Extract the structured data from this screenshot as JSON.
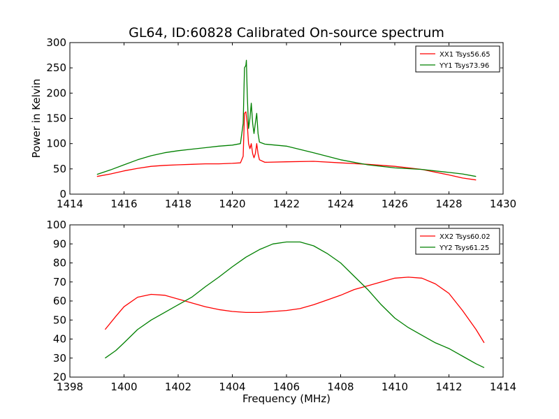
{
  "title": "GL64, ID:60828 Calibrated On-source spectrum",
  "chart_data": [
    {
      "type": "line",
      "xlabel": "",
      "ylabel": "Power in Kelvin",
      "xlim": [
        1414,
        1430
      ],
      "ylim": [
        0,
        300
      ],
      "xticks": [
        1414,
        1416,
        1418,
        1420,
        1422,
        1424,
        1426,
        1428,
        1430
      ],
      "yticks": [
        0,
        50,
        100,
        150,
        200,
        250,
        300
      ],
      "legend_position": "top-right",
      "series": [
        {
          "name": "XX1 Tsys56.65",
          "color": "#ff0000",
          "points": [
            [
              1415.0,
              35
            ],
            [
              1415.5,
              40
            ],
            [
              1416.0,
              46
            ],
            [
              1416.5,
              51
            ],
            [
              1417.0,
              55
            ],
            [
              1417.5,
              57
            ],
            [
              1418.0,
              58
            ],
            [
              1418.5,
              59
            ],
            [
              1419.0,
              60
            ],
            [
              1419.5,
              60
            ],
            [
              1420.0,
              61
            ],
            [
              1420.3,
              62
            ],
            [
              1420.4,
              75
            ],
            [
              1420.45,
              160
            ],
            [
              1420.5,
              163
            ],
            [
              1420.55,
              140
            ],
            [
              1420.6,
              100
            ],
            [
              1420.65,
              90
            ],
            [
              1420.7,
              100
            ],
            [
              1420.75,
              80
            ],
            [
              1420.8,
              72
            ],
            [
              1420.85,
              80
            ],
            [
              1420.9,
              100
            ],
            [
              1420.95,
              80
            ],
            [
              1421.0,
              68
            ],
            [
              1421.2,
              63
            ],
            [
              1422.0,
              64
            ],
            [
              1423.0,
              65
            ],
            [
              1424.0,
              62
            ],
            [
              1425.0,
              59
            ],
            [
              1426.0,
              55
            ],
            [
              1427.0,
              49
            ],
            [
              1428.0,
              38
            ],
            [
              1428.5,
              32
            ],
            [
              1429.0,
              28
            ]
          ]
        },
        {
          "name": "YY1 Tsys73.96",
          "color": "#008000",
          "points": [
            [
              1415.0,
              39
            ],
            [
              1415.5,
              48
            ],
            [
              1416.0,
              58
            ],
            [
              1416.5,
              68
            ],
            [
              1417.0,
              76
            ],
            [
              1417.5,
              82
            ],
            [
              1418.0,
              86
            ],
            [
              1418.5,
              89
            ],
            [
              1419.0,
              92
            ],
            [
              1419.5,
              95
            ],
            [
              1420.0,
              97
            ],
            [
              1420.3,
              100
            ],
            [
              1420.4,
              140
            ],
            [
              1420.45,
              250
            ],
            [
              1420.5,
              255
            ],
            [
              1420.52,
              265
            ],
            [
              1420.55,
              200
            ],
            [
              1420.6,
              130
            ],
            [
              1420.65,
              150
            ],
            [
              1420.7,
              180
            ],
            [
              1420.75,
              140
            ],
            [
              1420.8,
              120
            ],
            [
              1420.85,
              140
            ],
            [
              1420.9,
              160
            ],
            [
              1420.95,
              120
            ],
            [
              1421.0,
              103
            ],
            [
              1421.2,
              99
            ],
            [
              1422.0,
              95
            ],
            [
              1423.0,
              82
            ],
            [
              1424.0,
              68
            ],
            [
              1425.0,
              58
            ],
            [
              1426.0,
              52
            ],
            [
              1427.0,
              49
            ],
            [
              1428.0,
              43
            ],
            [
              1428.5,
              40
            ],
            [
              1429.0,
              35
            ]
          ]
        }
      ]
    },
    {
      "type": "line",
      "xlabel": "Frequency (MHz)",
      "ylabel": "",
      "xlim": [
        1398,
        1414
      ],
      "ylim": [
        20,
        100
      ],
      "xticks": [
        1398,
        1400,
        1402,
        1404,
        1406,
        1408,
        1410,
        1412,
        1414
      ],
      "yticks": [
        20,
        30,
        40,
        50,
        60,
        70,
        80,
        90,
        100
      ],
      "legend_position": "top-right",
      "series": [
        {
          "name": "XX2 Tsys60.02",
          "color": "#ff0000",
          "points": [
            [
              1399.3,
              45
            ],
            [
              1399.7,
              52
            ],
            [
              1400.0,
              57
            ],
            [
              1400.5,
              62
            ],
            [
              1401.0,
              63.5
            ],
            [
              1401.5,
              63
            ],
            [
              1402.0,
              61
            ],
            [
              1402.5,
              59
            ],
            [
              1403.0,
              57
            ],
            [
              1403.5,
              55.5
            ],
            [
              1404.0,
              54.5
            ],
            [
              1404.5,
              54
            ],
            [
              1405.0,
              54
            ],
            [
              1405.5,
              54.5
            ],
            [
              1406.0,
              55
            ],
            [
              1406.5,
              56
            ],
            [
              1407.0,
              58
            ],
            [
              1407.5,
              60.5
            ],
            [
              1408.0,
              63
            ],
            [
              1408.5,
              66
            ],
            [
              1409.0,
              68
            ],
            [
              1409.5,
              70
            ],
            [
              1410.0,
              72
            ],
            [
              1410.5,
              72.5
            ],
            [
              1411.0,
              72
            ],
            [
              1411.5,
              69
            ],
            [
              1412.0,
              64
            ],
            [
              1412.5,
              55
            ],
            [
              1413.0,
              45
            ],
            [
              1413.3,
              38
            ]
          ]
        },
        {
          "name": "YY2 Tsys61.25",
          "color": "#008000",
          "points": [
            [
              1399.3,
              30
            ],
            [
              1399.7,
              34
            ],
            [
              1400.0,
              38
            ],
            [
              1400.5,
              45
            ],
            [
              1401.0,
              50
            ],
            [
              1401.5,
              54
            ],
            [
              1402.0,
              58
            ],
            [
              1402.5,
              62
            ],
            [
              1403.0,
              67.5
            ],
            [
              1403.5,
              72.5
            ],
            [
              1404.0,
              78
            ],
            [
              1404.5,
              83
            ],
            [
              1405.0,
              87
            ],
            [
              1405.5,
              90
            ],
            [
              1406.0,
              91
            ],
            [
              1406.5,
              91
            ],
            [
              1407.0,
              89
            ],
            [
              1407.5,
              85
            ],
            [
              1408.0,
              80
            ],
            [
              1408.5,
              73
            ],
            [
              1409.0,
              66
            ],
            [
              1409.5,
              58
            ],
            [
              1410.0,
              51
            ],
            [
              1410.5,
              46
            ],
            [
              1411.0,
              42
            ],
            [
              1411.5,
              38
            ],
            [
              1412.0,
              35
            ],
            [
              1412.5,
              31
            ],
            [
              1413.0,
              27
            ],
            [
              1413.3,
              25
            ]
          ]
        }
      ]
    }
  ]
}
